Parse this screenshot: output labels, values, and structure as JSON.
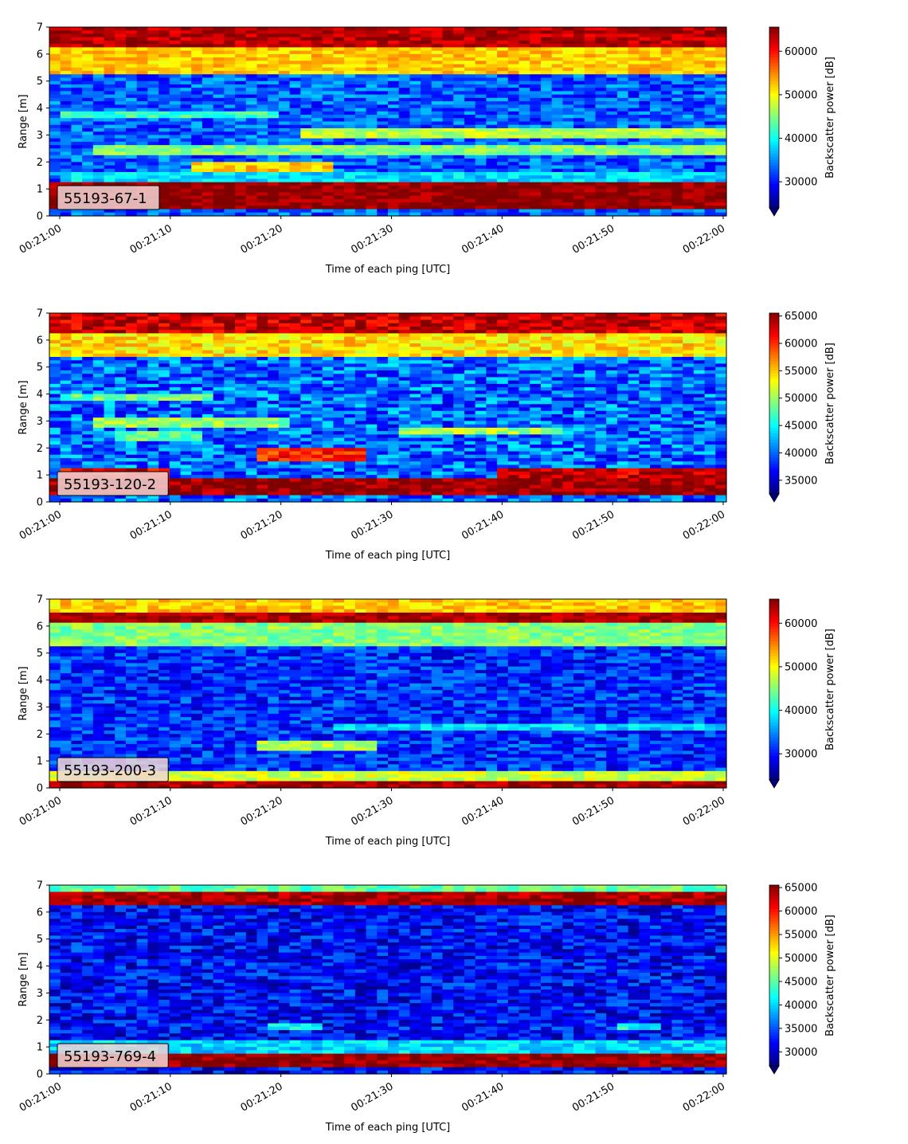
{
  "chart_data": [
    {
      "type": "heatmap",
      "label": "55193-67-1",
      "xlabel": "Time of each ping [UTC]",
      "ylabel": "Range [m]",
      "colorbar_label": "Backscatter power [dB]",
      "colormap": "jet",
      "xlim": [
        "00:21:00",
        "00:22:00"
      ],
      "xticks": [
        "00:21:00",
        "00:21:10",
        "00:21:20",
        "00:21:30",
        "00:21:40",
        "00:21:50",
        "00:22:00"
      ],
      "ylim": [
        0,
        7
      ],
      "yticks": [
        0,
        1,
        2,
        3,
        4,
        5,
        6,
        7
      ],
      "clim": [
        24000,
        65535
      ],
      "cticks": [
        30000,
        40000,
        50000,
        60000
      ],
      "features": [
        {
          "range": [
            0.2,
            1.2
          ],
          "level": 65000
        },
        {
          "range": [
            6.3,
            7.0
          ],
          "level": 63000
        },
        {
          "range": [
            5.2,
            6.3
          ],
          "level": 52000
        },
        {
          "range": [
            3.6,
            3.9
          ],
          "level": 42000,
          "t": [
            0,
            20
          ]
        },
        {
          "range": [
            2.3,
            2.6
          ],
          "level": 45000,
          "t": [
            3,
            60
          ]
        },
        {
          "range": [
            2.9,
            3.2
          ],
          "level": 47000,
          "t": [
            22,
            60
          ]
        },
        {
          "range": [
            1.5,
            2.0
          ],
          "level": 52000,
          "t": [
            12,
            25
          ]
        },
        {
          "range": [
            1.3,
            1.6
          ],
          "level": 38000,
          "t": [
            0,
            60
          ]
        }
      ],
      "background": 33000
    },
    {
      "type": "heatmap",
      "label": "55193-120-2",
      "xlabel": "Time of each ping [UTC]",
      "ylabel": "Range [m]",
      "colorbar_label": "Backscatter power [dB]",
      "colormap": "jet",
      "xlim": [
        "00:21:00",
        "00:22:00"
      ],
      "xticks": [
        "00:21:00",
        "00:21:10",
        "00:21:20",
        "00:21:30",
        "00:21:40",
        "00:21:50",
        "00:22:00"
      ],
      "ylim": [
        0,
        7
      ],
      "yticks": [
        0,
        1,
        2,
        3,
        4,
        5,
        6,
        7
      ],
      "clim": [
        32500,
        65535
      ],
      "cticks": [
        35000,
        40000,
        45000,
        50000,
        55000,
        60000,
        65000
      ],
      "features": [
        {
          "range": [
            0.2,
            0.9
          ],
          "level": 65000
        },
        {
          "range": [
            6.3,
            7.0
          ],
          "level": 63000
        },
        {
          "range": [
            5.4,
            6.3
          ],
          "level": 54000
        },
        {
          "range": [
            3.7,
            4.0
          ],
          "level": 48000,
          "t": [
            0,
            14
          ]
        },
        {
          "range": [
            2.8,
            3.1
          ],
          "level": 50000,
          "t": [
            3,
            21
          ]
        },
        {
          "range": [
            2.3,
            2.6
          ],
          "level": 48000,
          "t": [
            5,
            13
          ]
        },
        {
          "range": [
            1.5,
            2.0
          ],
          "level": 60000,
          "t": [
            18,
            28
          ]
        },
        {
          "range": [
            2.5,
            2.8
          ],
          "level": 50000,
          "t": [
            31,
            45
          ]
        },
        {
          "range": [
            0.9,
            1.2
          ],
          "level": 63000,
          "t": [
            40,
            60
          ]
        },
        {
          "range": [
            0.9,
            1.3
          ],
          "level": 62000,
          "t": [
            0,
            10
          ]
        }
      ],
      "background": 40000
    },
    {
      "type": "heatmap",
      "label": "55193-200-3",
      "xlabel": "Time of each ping [UTC]",
      "ylabel": "Range [m]",
      "colorbar_label": "Backscatter power [dB]",
      "colormap": "jet",
      "xlim": [
        "00:21:00",
        "00:22:00"
      ],
      "xticks": [
        "00:21:00",
        "00:21:10",
        "00:21:20",
        "00:21:30",
        "00:21:40",
        "00:21:50",
        "00:22:00"
      ],
      "ylim": [
        0,
        7
      ],
      "yticks": [
        0,
        1,
        2,
        3,
        4,
        5,
        6,
        7
      ],
      "clim": [
        24000,
        65535
      ],
      "cticks": [
        30000,
        40000,
        50000,
        60000
      ],
      "features": [
        {
          "range": [
            0.0,
            0.3
          ],
          "level": 64000
        },
        {
          "range": [
            0.3,
            0.6
          ],
          "level": 48000
        },
        {
          "range": [
            6.1,
            6.5
          ],
          "level": 64000
        },
        {
          "range": [
            6.5,
            7.0
          ],
          "level": 52000
        },
        {
          "range": [
            5.2,
            6.1
          ],
          "level": 45000
        },
        {
          "range": [
            1.4,
            1.7
          ],
          "level": 47000,
          "t": [
            18,
            29
          ]
        },
        {
          "range": [
            2.1,
            2.4
          ],
          "level": 38000,
          "t": [
            25,
            60
          ]
        }
      ],
      "background": 31000
    },
    {
      "type": "heatmap",
      "label": "55193-769-4",
      "xlabel": "Time of each ping [UTC]",
      "ylabel": "Range [m]",
      "colorbar_label": "Backscatter power [dB]",
      "colormap": "jet",
      "xlim": [
        "00:21:00",
        "00:22:00"
      ],
      "xticks": [
        "00:21:00",
        "00:21:10",
        "00:21:20",
        "00:21:30",
        "00:21:40",
        "00:21:50",
        "00:22:00"
      ],
      "ylim": [
        0,
        7
      ],
      "yticks": [
        0,
        1,
        2,
        3,
        4,
        5,
        6,
        7
      ],
      "clim": [
        27000,
        65535
      ],
      "cticks": [
        30000,
        35000,
        40000,
        45000,
        50000,
        55000,
        60000,
        65000
      ],
      "features": [
        {
          "range": [
            0.25,
            0.7
          ],
          "level": 65000
        },
        {
          "range": [
            6.2,
            6.8
          ],
          "level": 64000
        },
        {
          "range": [
            6.8,
            7.0
          ],
          "level": 45000
        },
        {
          "range": [
            0.7,
            1.2
          ],
          "level": 40000
        },
        {
          "range": [
            1.6,
            1.9
          ],
          "level": 42000,
          "t": [
            19,
            24
          ]
        },
        {
          "range": [
            1.6,
            1.9
          ],
          "level": 42000,
          "t": [
            50,
            54
          ]
        }
      ],
      "background": 32000
    }
  ]
}
